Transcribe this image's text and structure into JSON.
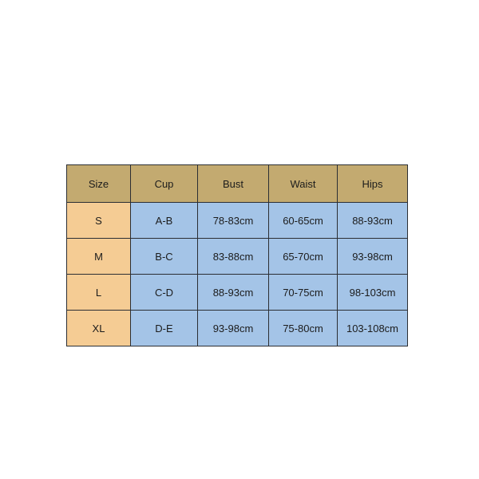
{
  "colors": {
    "header": "#c3aa70",
    "size_column": "#f5cc94",
    "cells": "#a4c4e7",
    "border": "#2b2e33"
  },
  "table": {
    "headers": [
      "Size",
      "Cup",
      "Bust",
      "Waist",
      "Hips"
    ],
    "rows": [
      [
        "S",
        "A-B",
        "78-83cm",
        "60-65cm",
        "88-93cm"
      ],
      [
        "M",
        "B-C",
        "83-88cm",
        "65-70cm",
        "93-98cm"
      ],
      [
        "L",
        "C-D",
        "88-93cm",
        "70-75cm",
        "98-103cm"
      ],
      [
        "XL",
        "D-E",
        "93-98cm",
        "75-80cm",
        "103-108cm"
      ]
    ]
  }
}
